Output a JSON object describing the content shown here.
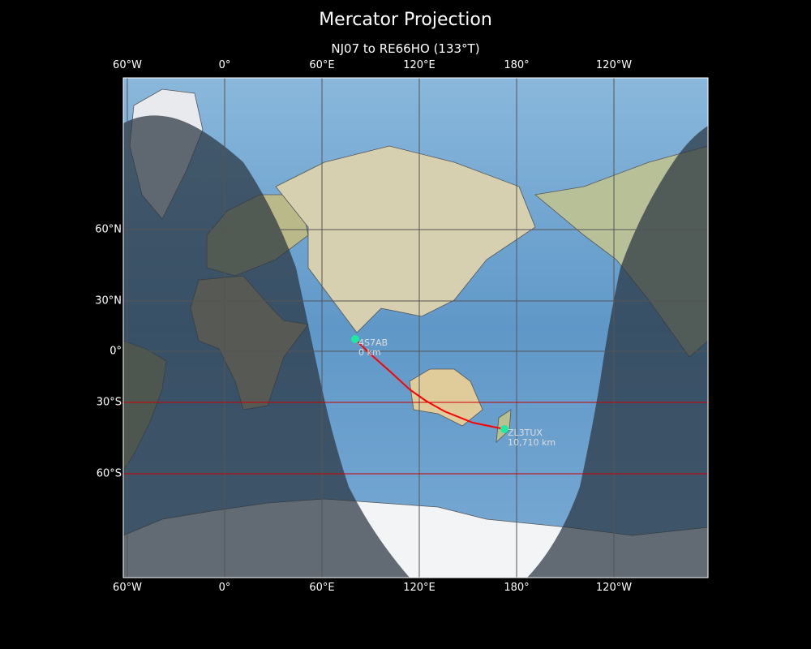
{
  "title": "Mercator Projection",
  "subtitle": "NJ07 to RE66HO (133°T)",
  "map": {
    "projection": "Mercator",
    "lon_range": [
      -62.5,
      297.5
    ],
    "lat_range": [
      -80,
      84
    ],
    "ocean_color": "#6b9fcc",
    "night_shade_color": "#2a3440",
    "gridline_color": "#555555",
    "highlight_latitudes": [
      -30,
      -60
    ],
    "highlight_color": "#cc0000",
    "x_ticks": [
      "60°W",
      "0°",
      "60°E",
      "120°E",
      "180°",
      "120°W"
    ],
    "y_ticks": [
      "60°N",
      "30°N",
      "0°",
      "30°S",
      "60°S"
    ]
  },
  "route": {
    "color": "#ff0000",
    "bearing": "133°T",
    "start": {
      "call": "4S7AB",
      "distance": "0 km",
      "lon": 80.5,
      "lat": 7.5
    },
    "end": {
      "call": "ZL3TUX",
      "distance": "10,710 km",
      "lon": 172.5,
      "lat": -43.5
    },
    "marker_color": "#1de9a0"
  }
}
